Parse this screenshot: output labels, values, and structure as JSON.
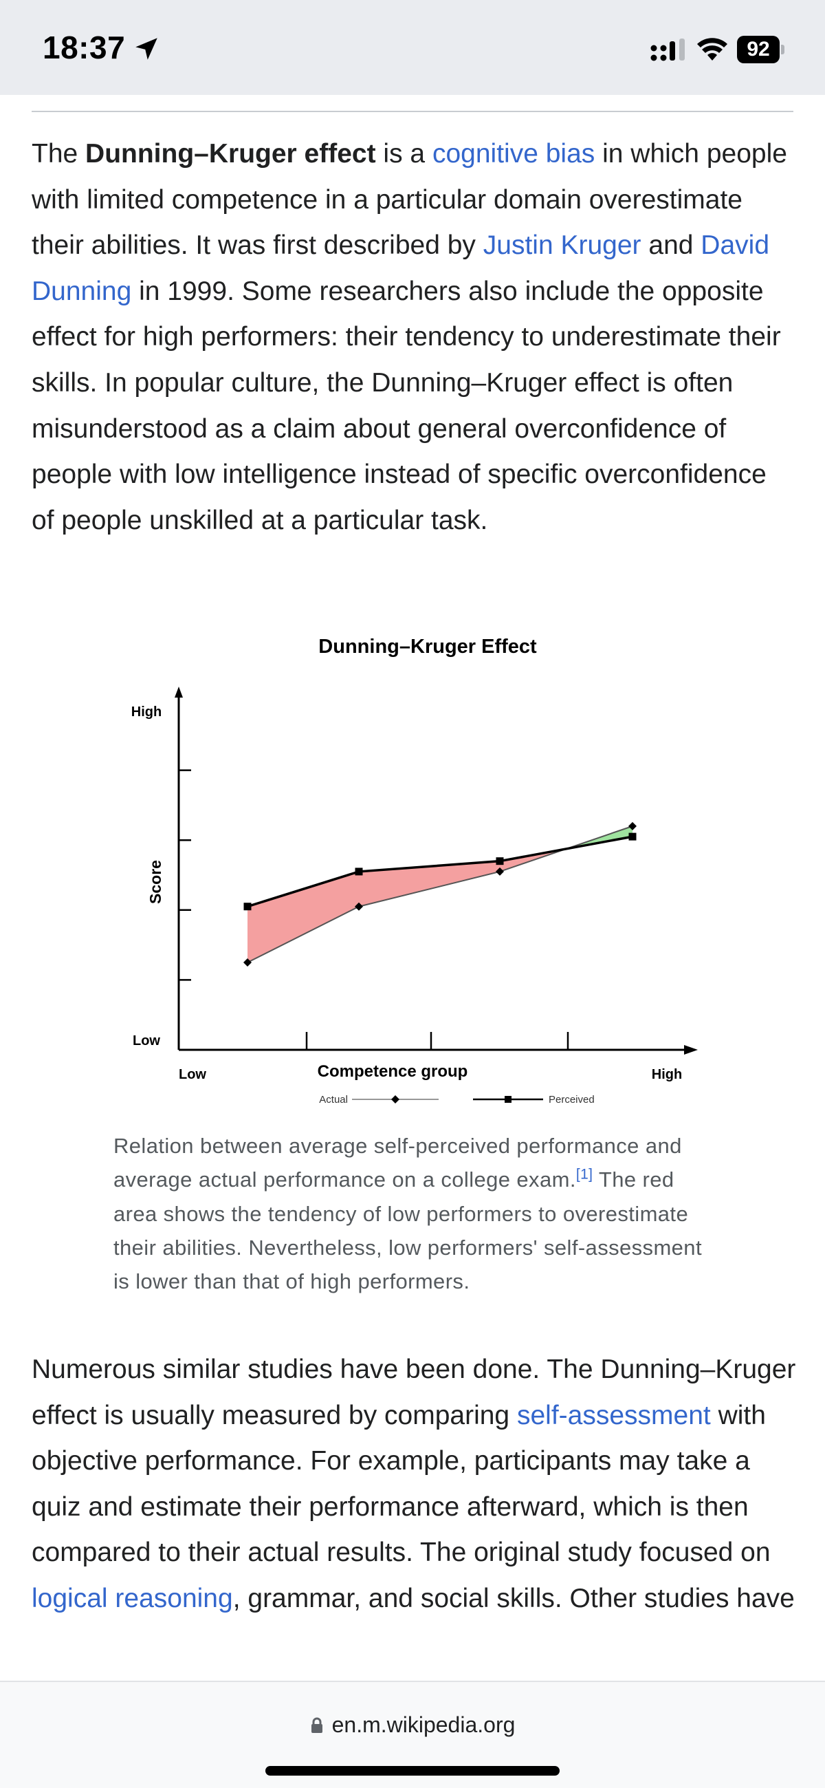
{
  "status_bar": {
    "time": "18:37",
    "battery": "92",
    "icons": [
      "location-arrow-icon",
      "signal-icon",
      "wifi-icon",
      "battery-icon"
    ]
  },
  "article": {
    "para1": [
      {
        "t": "The "
      },
      {
        "t": "Dunning–Kruger effect",
        "b": true
      },
      {
        "t": " is a "
      },
      {
        "t": "cognitive bias",
        "link": true
      },
      {
        "t": " in which people with limited competence in a particular domain overestimate their abilities. It was first described by "
      },
      {
        "t": "Justin Kruger",
        "link": true
      },
      {
        "t": " and "
      },
      {
        "t": "David Dunning",
        "link": true
      },
      {
        "t": " in 1999. Some researchers also include the opposite effect for high performers: their tendency to underestimate their skills. In popular culture, the Dunning–Kruger effect is often misunderstood as a claim about general overconfidence of people with low intelligence instead of specific overconfidence of people unskilled at a particular task."
      }
    ],
    "caption": "Relation between average self-perceived performance and average actual performance on a college exam.",
    "caption_ref": "[1]",
    "caption_rest": " The red area shows the tendency of low performers to overestimate their abilities. Nevertheless, low performers' self-assessment is lower than that of high performers.",
    "para2": [
      {
        "t": "Numerous similar studies have been done. The Dunning–Kruger effect is usually measured by comparing "
      },
      {
        "t": "self-assessment",
        "link": true
      },
      {
        "t": " with objective performance. For example, participants may take a quiz and estimate their performance afterward, which is then compared to their actual results. The original study focused on "
      },
      {
        "t": "logical reasoning",
        "link": true
      },
      {
        "t": ", grammar, and social skills. Other studies have"
      }
    ]
  },
  "chart_data": {
    "type": "line",
    "title": "Dunning–Kruger Effect",
    "xlabel": "Competence group",
    "ylabel": "Score",
    "x_tick_labels": [
      "Low",
      "High"
    ],
    "y_tick_labels": [
      "Low",
      "High"
    ],
    "categories": [
      "1",
      "2",
      "3",
      "4"
    ],
    "series": [
      {
        "name": "Actual",
        "marker": "diamond",
        "values": [
          25,
          41,
          51,
          64
        ]
      },
      {
        "name": "Perceived",
        "marker": "square",
        "values": [
          41,
          51,
          54,
          61
        ]
      }
    ],
    "ylim": [
      0,
      100
    ],
    "legend": "bottom",
    "colors": {
      "overestimate": "#f4a0a0",
      "underestimate": "#9fe39f",
      "line": "#000000",
      "actual_line": "#555555"
    }
  },
  "bottom_bar": {
    "url": "en.m.wikipedia.org"
  }
}
